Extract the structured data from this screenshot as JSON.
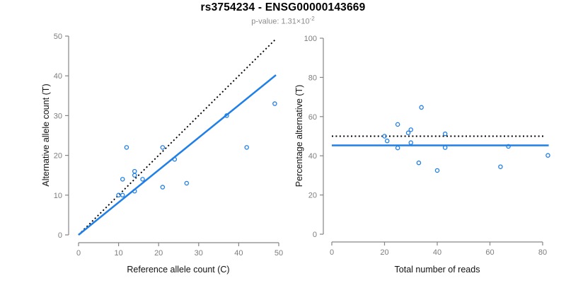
{
  "header": {
    "title": "rs3754234 - ENSG00000143669",
    "pvalue_prefix": "p-value: 1.31×10",
    "pvalue_exponent": "-2"
  },
  "colors": {
    "accent_blue": "#1F7FE8",
    "dotted_black": "#000000",
    "axis_gray": "#868686",
    "tick_label_gray": "#7d7d7d",
    "axis_title_black": "#111111"
  },
  "chart_data": [
    {
      "type": "scatter",
      "name": "allele-count-plot",
      "xlabel": "Reference allele count (C)",
      "ylabel": "Alternative allele count (T)",
      "xlim": [
        0,
        50
      ],
      "ylim": [
        0,
        50
      ],
      "xticks": [
        0,
        10,
        20,
        30,
        40,
        50
      ],
      "yticks": [
        0,
        10,
        20,
        30,
        40,
        50
      ],
      "grid": false,
      "legend": "none",
      "points": [
        [
          10,
          10
        ],
        [
          11,
          10
        ],
        [
          11,
          14
        ],
        [
          12,
          22
        ],
        [
          14,
          11
        ],
        [
          14,
          15
        ],
        [
          14,
          16
        ],
        [
          16,
          14
        ],
        [
          21,
          12
        ],
        [
          21,
          22
        ],
        [
          24,
          19
        ],
        [
          27,
          13
        ],
        [
          37,
          30
        ],
        [
          42,
          22
        ],
        [
          49,
          33
        ]
      ],
      "lines": [
        {
          "name": "identity-line",
          "style": "dotted",
          "color_key": "dotted_black",
          "x1": 0,
          "y1": 0,
          "x2": 49,
          "y2": 49
        },
        {
          "name": "fit-line",
          "style": "solid",
          "color_key": "accent_blue",
          "x1": 0,
          "y1": 0,
          "x2": 49.3,
          "y2": 40.2
        }
      ]
    },
    {
      "type": "scatter",
      "name": "percentage-plot",
      "xlabel": "Total number of reads",
      "ylabel": "Percentage alternative (T)",
      "xlim": [
        0,
        80
      ],
      "ylim": [
        0,
        100
      ],
      "xticks": [
        0,
        20,
        40,
        60,
        80
      ],
      "yticks": [
        0,
        20,
        40,
        60,
        80,
        100
      ],
      "grid": false,
      "legend": "none",
      "points": [
        [
          20,
          50.0
        ],
        [
          21,
          47.6
        ],
        [
          25,
          56.0
        ],
        [
          34,
          64.7
        ],
        [
          25,
          44.0
        ],
        [
          29,
          51.7
        ],
        [
          30,
          53.3
        ],
        [
          30,
          46.7
        ],
        [
          33,
          36.4
        ],
        [
          43,
          51.2
        ],
        [
          43,
          44.2
        ],
        [
          40,
          32.5
        ],
        [
          67,
          44.8
        ],
        [
          64,
          34.4
        ],
        [
          82,
          40.2
        ]
      ],
      "lines": [
        {
          "name": "expected-50pct-line",
          "style": "dotted",
          "color_key": "dotted_black",
          "x1": 0,
          "y1": 50,
          "x2": 80.5,
          "y2": 50
        },
        {
          "name": "mean-percentage-line",
          "style": "solid",
          "color_key": "accent_blue",
          "x1": 0,
          "y1": 45.3,
          "x2": 82.3,
          "y2": 45.3
        }
      ]
    }
  ]
}
